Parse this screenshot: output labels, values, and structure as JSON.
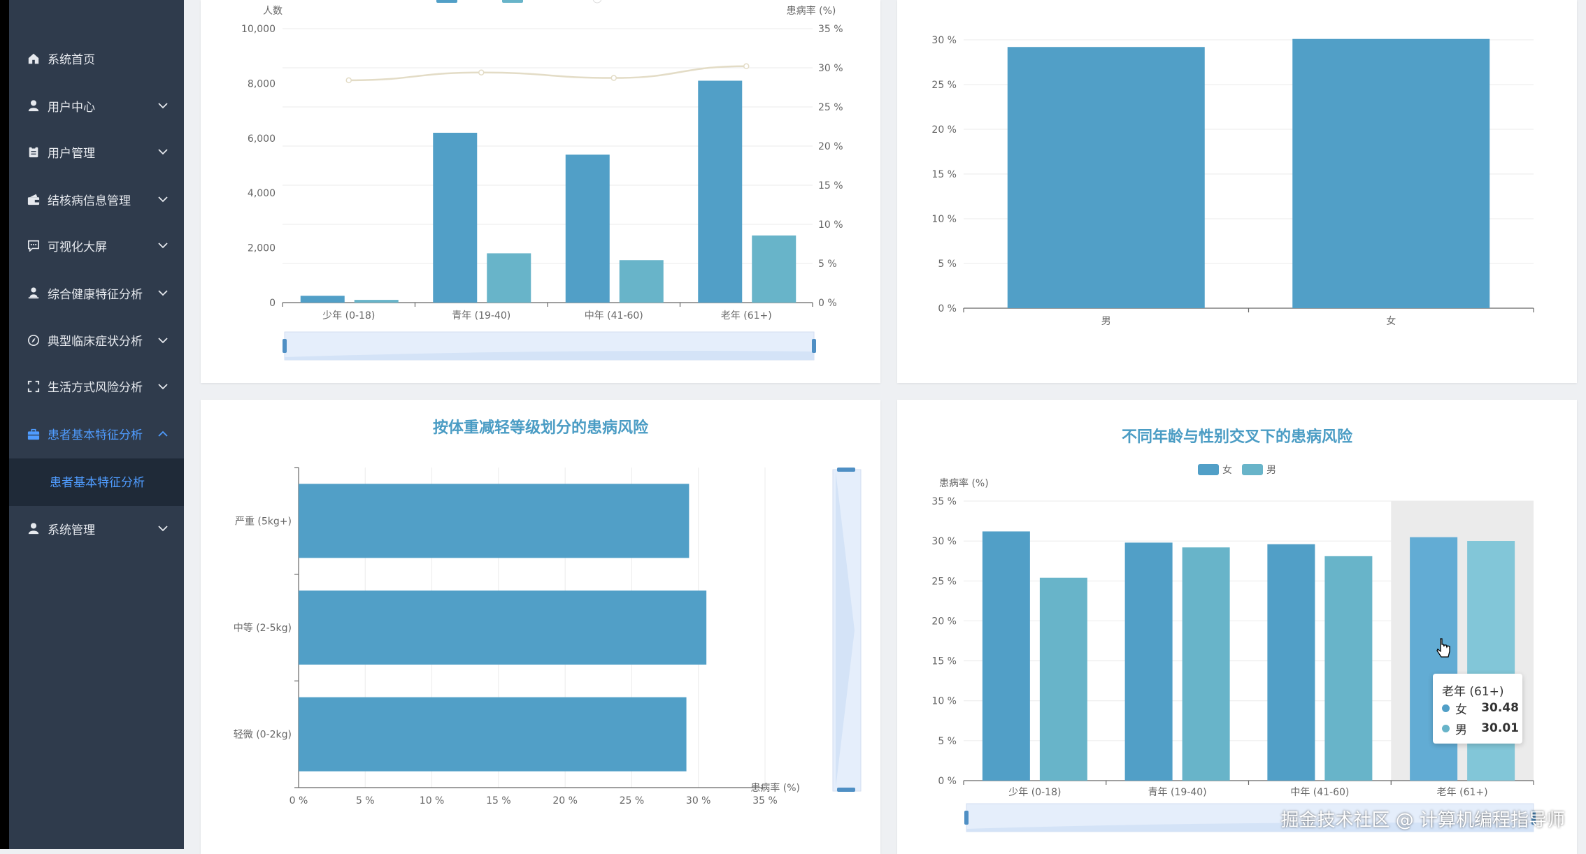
{
  "sidebar": {
    "items": [
      {
        "label": "系统首页",
        "icon": "home-icon",
        "expandable": false
      },
      {
        "label": "用户中心",
        "icon": "user-icon",
        "expandable": true
      },
      {
        "label": "用户管理",
        "icon": "clipboard-icon",
        "expandable": true
      },
      {
        "label": "结核病信息管理",
        "icon": "wallet-icon",
        "expandable": true
      },
      {
        "label": "可视化大屏",
        "icon": "chat-icon",
        "expandable": true
      },
      {
        "label": "综合健康特征分析",
        "icon": "person-icon",
        "expandable": true
      },
      {
        "label": "典型临床症状分析",
        "icon": "compass-icon",
        "expandable": true
      },
      {
        "label": "生活方式风险分析",
        "icon": "fullscreen-icon",
        "expandable": true
      },
      {
        "label": "患者基本特征分析",
        "icon": "briefcase-icon",
        "expandable": true,
        "active": true,
        "expanded": true
      },
      {
        "label": "系统管理",
        "icon": "user-icon",
        "expandable": true
      }
    ],
    "active_submenu": "患者基本特征分析"
  },
  "colors": {
    "sidebar_bg": "#2f3b4c",
    "accent": "#4f9cff",
    "bar_primary": "#519fc7",
    "bar_secondary": "#68b4c9",
    "bar_highlight": "#6cb8d4",
    "title": "#4a9cc4"
  },
  "chart_data": [
    {
      "type": "bar",
      "categories": [
        "少年 (0-18)",
        "青年 (19-40)",
        "中年 (41-60)",
        "老年 (61+)"
      ],
      "y_left_label": "人数",
      "y_right_label": "患病率 (%)",
      "y_left_ticks": [
        "0",
        "2,000",
        "4,000",
        "6,000",
        "8,000",
        "10,000"
      ],
      "y_right_ticks": [
        "0 %",
        "5 %",
        "10 %",
        "15 %",
        "20 %",
        "25 %",
        "30 %",
        "35 %"
      ],
      "ylim_left": [
        0,
        10000
      ],
      "ylim_right": [
        0,
        35
      ],
      "series": [
        {
          "values": [
            250,
            6200,
            5400,
            8100
          ]
        },
        {
          "values": [
            100,
            1800,
            1550,
            2450
          ]
        },
        {
          "type": "line",
          "values": [
            28.4,
            29.4,
            28.7,
            30.2
          ]
        }
      ],
      "legend_placement": "top",
      "data_zoom": true
    },
    {
      "type": "bar",
      "categories": [
        "男",
        "女"
      ],
      "values": [
        29.2,
        30.1
      ],
      "y_ticks": [
        "0 %",
        "5 %",
        "10 %",
        "15 %",
        "20 %",
        "25 %",
        "30 %"
      ],
      "ylim": [
        0,
        30
      ]
    },
    {
      "type": "bar",
      "orientation": "horizontal",
      "title": "按体重减轻等级划分的患病风险",
      "categories": [
        "严重 (5kg+)",
        "中等 (2-5kg)",
        "轻微 (0-2kg)"
      ],
      "values": [
        29.3,
        30.6,
        29.1
      ],
      "x_ticks": [
        "0 %",
        "5 %",
        "10 %",
        "15 %",
        "20 %",
        "25 %",
        "30 %",
        "35 %"
      ],
      "xlim": [
        0,
        35
      ],
      "xlabel": "患病率 (%)",
      "data_zoom": true
    },
    {
      "type": "bar",
      "title": "不同年龄与性别交叉下的患病风险",
      "categories": [
        "少年 (0-18)",
        "青年 (19-40)",
        "中年 (41-60)",
        "老年 (61+)"
      ],
      "series": [
        {
          "name": "女",
          "values": [
            31.2,
            29.8,
            29.6,
            30.48
          ]
        },
        {
          "name": "男",
          "values": [
            25.4,
            29.2,
            28.1,
            30.01
          ]
        }
      ],
      "ylabel": "患病率 (%)",
      "y_ticks": [
        "0 %",
        "5 %",
        "10 %",
        "15 %",
        "20 %",
        "25 %",
        "30 %",
        "35 %"
      ],
      "ylim": [
        0,
        35
      ],
      "legend_placement": "top",
      "highlighted_category": "老年 (61+)",
      "data_zoom": true
    }
  ],
  "tooltip": {
    "title": "老年 (61+)",
    "rows": [
      {
        "name": "女",
        "value": "30.48"
      },
      {
        "name": "男",
        "value": "30.01"
      }
    ]
  },
  "watermark": "掘金技术社区 @ 计算机编程指导师"
}
